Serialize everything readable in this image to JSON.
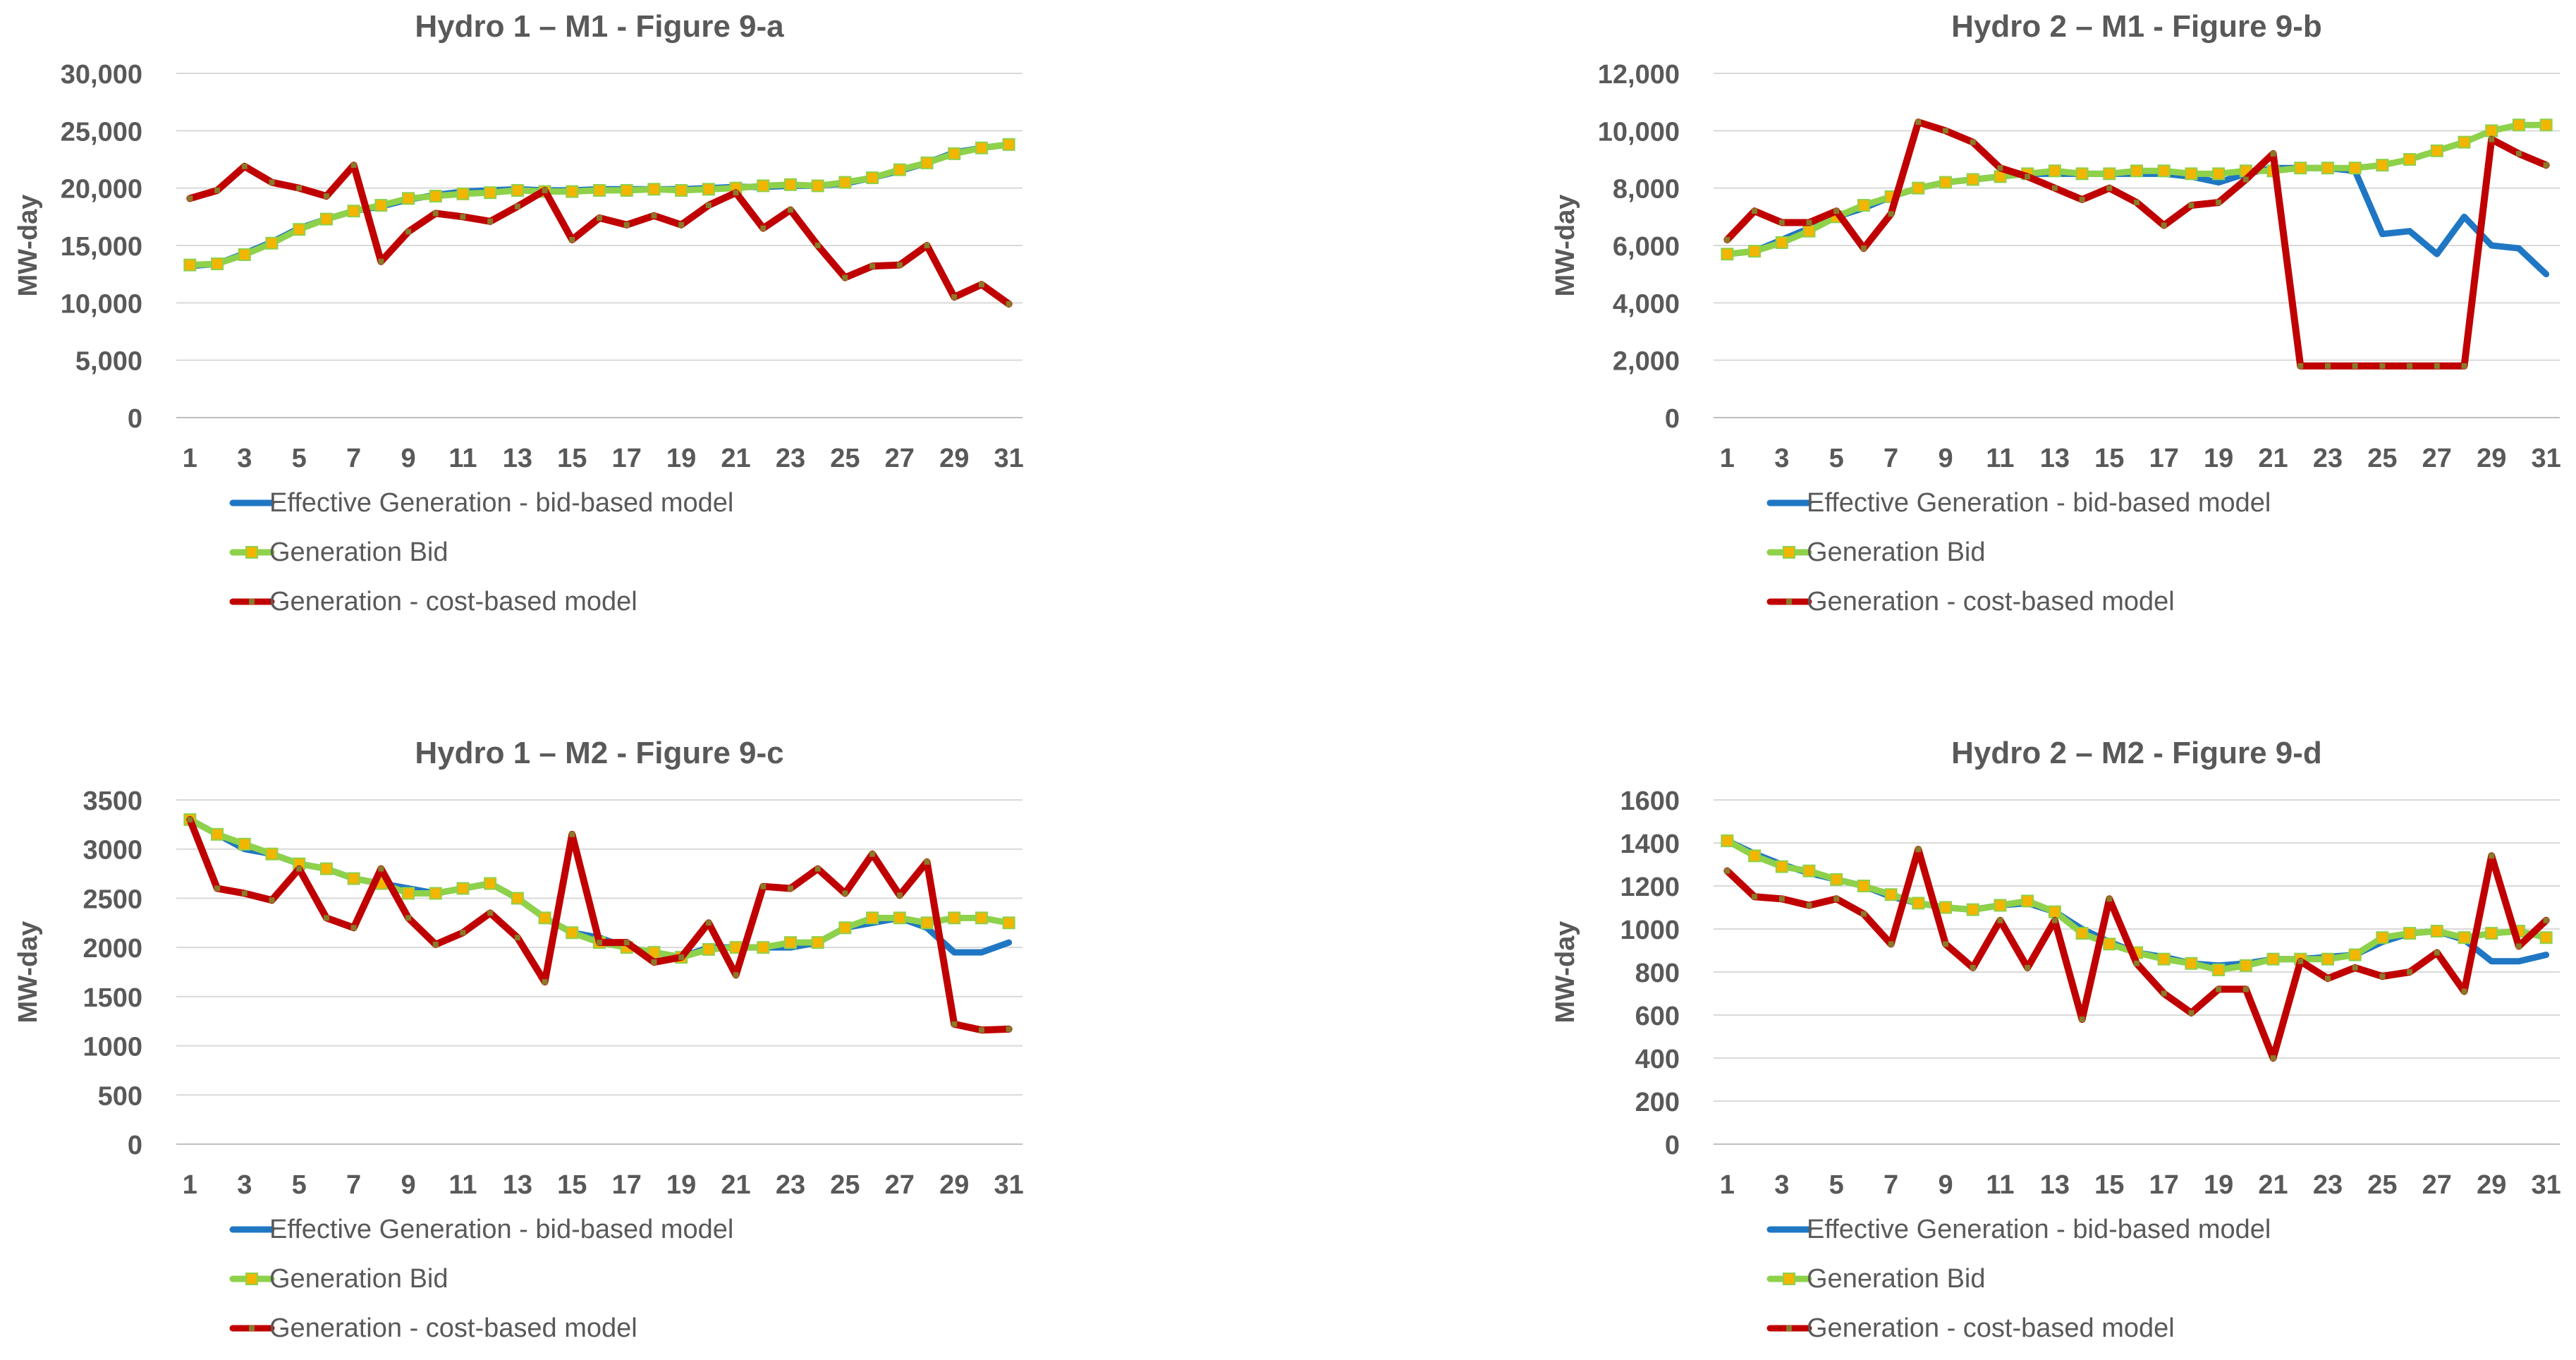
{
  "colors": {
    "effective": "#1f77c4",
    "bid": "#8ed14a",
    "bid_marker": "#f2b600",
    "cost": "#c00000",
    "cost_marker": "#8a7a2a",
    "grid": "#d9d9d9",
    "text": "#595959"
  },
  "chart_data": [
    {
      "type": "line",
      "title": "Hydro 1 – M1 - Figure 9-a",
      "ylabel": "MW-day",
      "xlabel": "",
      "ylim": [
        0,
        30000
      ],
      "yticks": [
        0,
        5000,
        10000,
        15000,
        20000,
        25000,
        30000
      ],
      "ytick_labels": [
        "0",
        "5,000",
        "10,000",
        "15,000",
        "20,000",
        "25,000",
        "30,000"
      ],
      "x": [
        1,
        2,
        3,
        4,
        5,
        6,
        7,
        8,
        9,
        10,
        11,
        12,
        13,
        14,
        15,
        16,
        17,
        18,
        19,
        20,
        21,
        22,
        23,
        24,
        25,
        26,
        27,
        28,
        29,
        30,
        31
      ],
      "xtick_labels": [
        "1",
        "3",
        "5",
        "7",
        "9",
        "11",
        "13",
        "15",
        "17",
        "19",
        "21",
        "23",
        "25",
        "27",
        "29",
        "31"
      ],
      "legend": [
        "Effective Generation - bid-based model",
        "Generation Bid",
        "Generation -  cost-based model"
      ],
      "series": [
        {
          "name": "Effective Generation - bid-based model",
          "values": [
            13200,
            13400,
            14300,
            15300,
            16500,
            17300,
            18000,
            18400,
            19000,
            19400,
            19700,
            19800,
            19900,
            19800,
            19800,
            19900,
            19900,
            19900,
            19900,
            20000,
            20100,
            20100,
            20200,
            20200,
            20400,
            20900,
            21500,
            22200,
            23100,
            23500,
            23800
          ]
        },
        {
          "name": "Generation Bid",
          "values": [
            13300,
            13400,
            14200,
            15200,
            16400,
            17300,
            18000,
            18500,
            19100,
            19300,
            19500,
            19600,
            19800,
            19700,
            19700,
            19800,
            19800,
            19900,
            19800,
            19900,
            20000,
            20200,
            20300,
            20200,
            20500,
            20900,
            21600,
            22200,
            23000,
            23500,
            23800
          ]
        },
        {
          "name": "Generation -  cost-based model",
          "values": [
            19100,
            19800,
            21900,
            20500,
            20000,
            19300,
            22000,
            13600,
            16200,
            17800,
            17500,
            17100,
            18400,
            19800,
            15500,
            17400,
            16800,
            17600,
            16800,
            18500,
            19600,
            16500,
            18100,
            15000,
            12200,
            13200,
            13300,
            15000,
            10500,
            11600,
            9900
          ]
        }
      ]
    },
    {
      "type": "line",
      "title": "Hydro 2 – M1 - Figure 9-b",
      "ylabel": "MW-day",
      "xlabel": "",
      "ylim": [
        0,
        12000
      ],
      "yticks": [
        0,
        2000,
        4000,
        6000,
        8000,
        10000,
        12000
      ],
      "ytick_labels": [
        "0",
        "2,000",
        "4,000",
        "6,000",
        "8,000",
        "10,000",
        "12,000"
      ],
      "x": [
        1,
        2,
        3,
        4,
        5,
        6,
        7,
        8,
        9,
        10,
        11,
        12,
        13,
        14,
        15,
        16,
        17,
        18,
        19,
        20,
        21,
        22,
        23,
        24,
        25,
        26,
        27,
        28,
        29,
        30,
        31
      ],
      "xtick_labels": [
        "1",
        "3",
        "5",
        "7",
        "9",
        "11",
        "13",
        "15",
        "17",
        "19",
        "21",
        "23",
        "25",
        "27",
        "29",
        "31"
      ],
      "legend": [
        "Effective Generation - bid-based model",
        "Generation Bid",
        "Generation -  cost-based model"
      ],
      "series": [
        {
          "name": "Effective Generation - bid-based model",
          "values": [
            5700,
            5800,
            6200,
            6600,
            7000,
            7300,
            7700,
            8000,
            8200,
            8300,
            8400,
            8500,
            8500,
            8500,
            8500,
            8500,
            8500,
            8400,
            8200,
            8500,
            8700,
            8700,
            8700,
            8600,
            6400,
            6500,
            5700,
            7000,
            6000,
            5900,
            5000
          ]
        },
        {
          "name": "Generation Bid",
          "values": [
            5700,
            5800,
            6100,
            6500,
            7000,
            7400,
            7700,
            8000,
            8200,
            8300,
            8400,
            8500,
            8600,
            8500,
            8500,
            8600,
            8600,
            8500,
            8500,
            8600,
            8600,
            8700,
            8700,
            8700,
            8800,
            9000,
            9300,
            9600,
            10000,
            10200,
            10200
          ]
        },
        {
          "name": "Generation -  cost-based model",
          "values": [
            6200,
            7200,
            6800,
            6800,
            7200,
            5900,
            7100,
            10300,
            10000,
            9600,
            8700,
            8400,
            8000,
            7600,
            8000,
            7500,
            6700,
            7400,
            7500,
            8300,
            9200,
            1800,
            1800,
            1800,
            1800,
            1800,
            1800,
            1800,
            9700,
            9200,
            8800
          ]
        }
      ]
    },
    {
      "type": "line",
      "title": "Hydro 1 – M2 - Figure 9-c",
      "ylabel": "MW-day",
      "xlabel": "",
      "ylim": [
        0,
        3500
      ],
      "yticks": [
        0,
        500,
        1000,
        1500,
        2000,
        2500,
        3000,
        3500
      ],
      "ytick_labels": [
        "0",
        "500",
        "1000",
        "1500",
        "2000",
        "2500",
        "3000",
        "3500"
      ],
      "x": [
        1,
        2,
        3,
        4,
        5,
        6,
        7,
        8,
        9,
        10,
        11,
        12,
        13,
        14,
        15,
        16,
        17,
        18,
        19,
        20,
        21,
        22,
        23,
        24,
        25,
        26,
        27,
        28,
        29,
        30,
        31
      ],
      "xtick_labels": [
        "1",
        "3",
        "5",
        "7",
        "9",
        "11",
        "13",
        "15",
        "17",
        "19",
        "21",
        "23",
        "25",
        "27",
        "29",
        "31"
      ],
      "legend": [
        "Effective Generation - bid-based model",
        "Generation Bid",
        "Generation -  cost-based model"
      ],
      "series": [
        {
          "name": "Effective Generation - bid-based model",
          "values": [
            3300,
            3150,
            3000,
            2950,
            2850,
            2800,
            2700,
            2650,
            2600,
            2550,
            2600,
            2650,
            2500,
            2300,
            2150,
            2100,
            2000,
            1950,
            1900,
            2000,
            2000,
            2000,
            2000,
            2050,
            2200,
            2250,
            2300,
            2200,
            1950,
            1950,
            2050
          ]
        },
        {
          "name": "Generation Bid",
          "values": [
            3300,
            3150,
            3050,
            2950,
            2850,
            2800,
            2700,
            2650,
            2550,
            2550,
            2600,
            2650,
            2500,
            2300,
            2150,
            2050,
            2000,
            1950,
            1900,
            1980,
            2000,
            2000,
            2050,
            2050,
            2200,
            2300,
            2300,
            2250,
            2300,
            2300,
            2250
          ]
        },
        {
          "name": "Generation -  cost-based model",
          "values": [
            3300,
            2600,
            2550,
            2480,
            2800,
            2300,
            2200,
            2800,
            2300,
            2030,
            2150,
            2350,
            2100,
            1650,
            3150,
            2050,
            2050,
            1850,
            1900,
            2250,
            1720,
            2620,
            2600,
            2800,
            2550,
            2950,
            2530,
            2870,
            1220,
            1160,
            1170
          ]
        }
      ]
    },
    {
      "type": "line",
      "title": "Hydro 2 – M2 - Figure 9-d",
      "ylabel": "MW-day",
      "xlabel": "",
      "ylim": [
        0,
        1600
      ],
      "yticks": [
        0,
        200,
        400,
        600,
        800,
        1000,
        1200,
        1400,
        1600
      ],
      "ytick_labels": [
        "0",
        "200",
        "400",
        "600",
        "800",
        "1000",
        "1200",
        "1400",
        "1600"
      ],
      "x": [
        1,
        2,
        3,
        4,
        5,
        6,
        7,
        8,
        9,
        10,
        11,
        12,
        13,
        14,
        15,
        16,
        17,
        18,
        19,
        20,
        21,
        22,
        23,
        24,
        25,
        26,
        27,
        28,
        29,
        30,
        31
      ],
      "xtick_labels": [
        "1",
        "3",
        "5",
        "7",
        "9",
        "11",
        "13",
        "15",
        "17",
        "19",
        "21",
        "23",
        "25",
        "27",
        "29",
        "31"
      ],
      "legend": [
        "Effective Generation - bid-based model",
        "Generation Bid",
        "Generation -  cost-based model"
      ],
      "series": [
        {
          "name": "Effective Generation - bid-based model",
          "values": [
            1410,
            1350,
            1300,
            1260,
            1230,
            1200,
            1150,
            1120,
            1100,
            1090,
            1110,
            1120,
            1080,
            1000,
            940,
            890,
            870,
            840,
            830,
            840,
            860,
            860,
            870,
            880,
            940,
            980,
            990,
            950,
            850,
            850,
            880
          ]
        },
        {
          "name": "Generation Bid",
          "values": [
            1410,
            1340,
            1290,
            1270,
            1230,
            1200,
            1160,
            1120,
            1100,
            1090,
            1110,
            1130,
            1080,
            980,
            930,
            890,
            860,
            840,
            810,
            830,
            860,
            860,
            860,
            880,
            960,
            980,
            990,
            960,
            980,
            990,
            960
          ]
        },
        {
          "name": "Generation -  cost-based model",
          "values": [
            1270,
            1150,
            1140,
            1110,
            1140,
            1070,
            930,
            1370,
            930,
            820,
            1040,
            820,
            1040,
            580,
            1140,
            840,
            700,
            610,
            720,
            720,
            400,
            850,
            770,
            820,
            780,
            800,
            890,
            710,
            1340,
            920,
            1040
          ]
        }
      ]
    }
  ]
}
